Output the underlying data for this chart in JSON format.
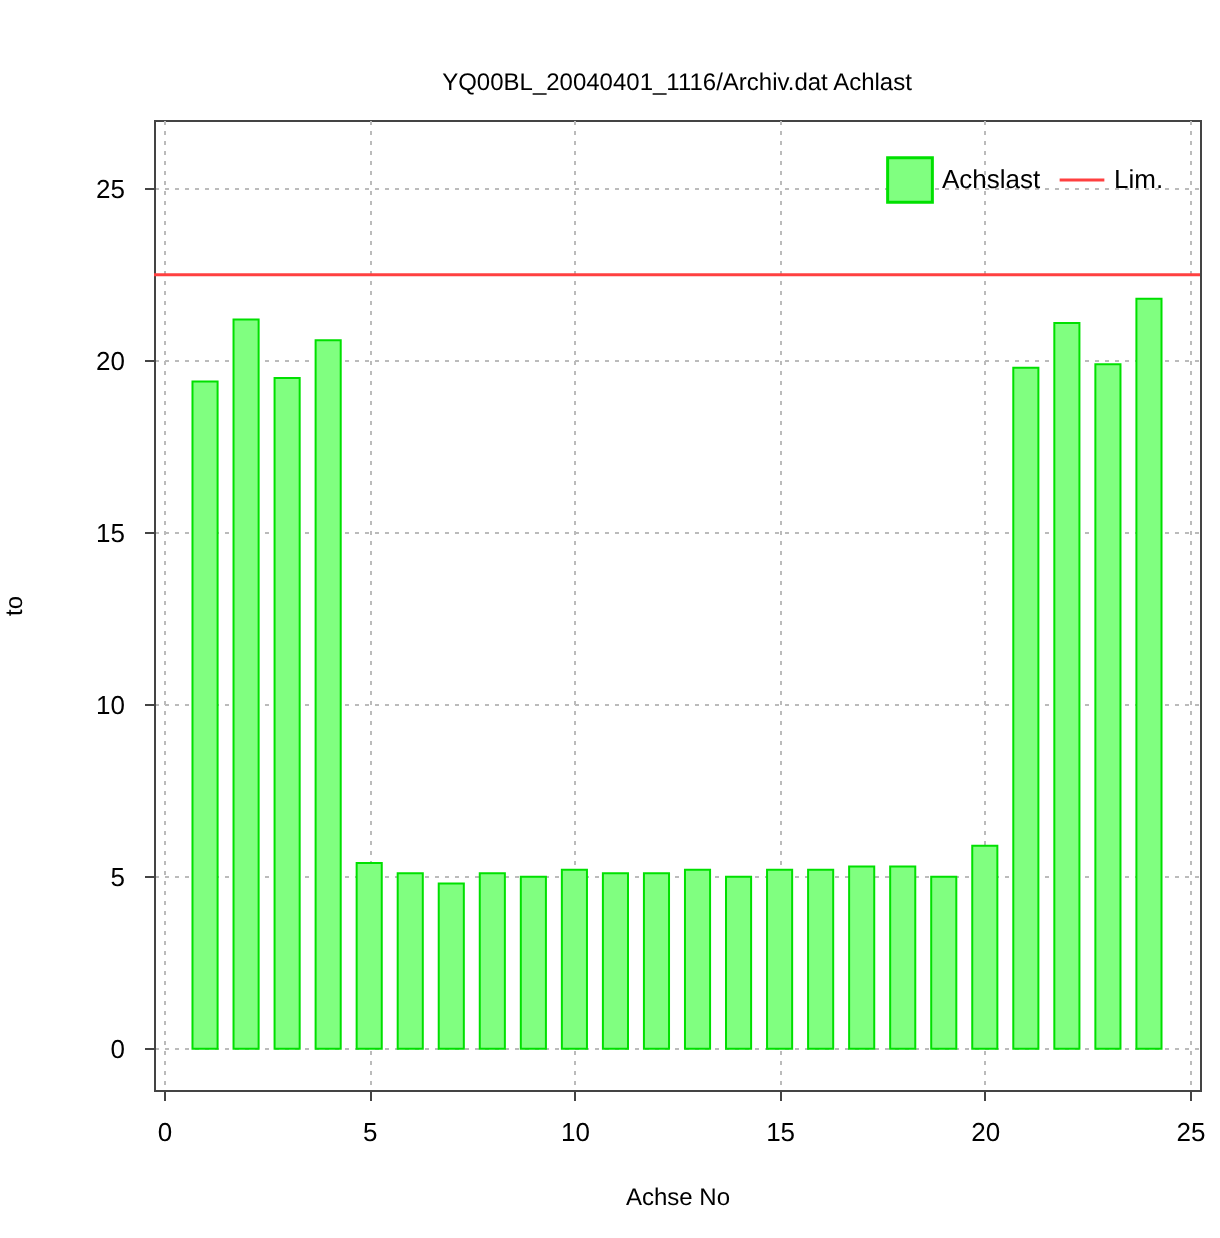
{
  "chart_data": {
    "type": "bar",
    "title": "YQ00BL_20040401_1116/Archiv.dat Achlast",
    "xlabel": "Achse No",
    "ylabel": "to",
    "x": [
      1,
      2,
      3,
      4,
      5,
      6,
      7,
      8,
      9,
      10,
      11,
      12,
      13,
      14,
      15,
      16,
      17,
      18,
      19,
      20,
      21,
      22,
      23,
      24
    ],
    "series": [
      {
        "name": "Achslast",
        "color": "#80ff80",
        "values": [
          19.4,
          21.2,
          19.5,
          20.6,
          5.4,
          5.1,
          4.8,
          5.1,
          5.0,
          5.2,
          5.1,
          5.1,
          5.2,
          5.0,
          5.2,
          5.2,
          5.3,
          5.3,
          5.0,
          5.9,
          19.8,
          21.1,
          19.9,
          21.8
        ]
      }
    ],
    "ref_lines": [
      {
        "axis": "y",
        "value": 22.5,
        "label": "Lim.",
        "color": "#ff4040"
      }
    ],
    "xlim": [
      0,
      25
    ],
    "xticks": [
      0,
      5,
      10,
      15,
      20,
      25
    ],
    "ylim": [
      -1.2,
      27
    ],
    "yticks": [
      0,
      5,
      10,
      15,
      20,
      25
    ],
    "grid": true,
    "legend": "top right"
  }
}
